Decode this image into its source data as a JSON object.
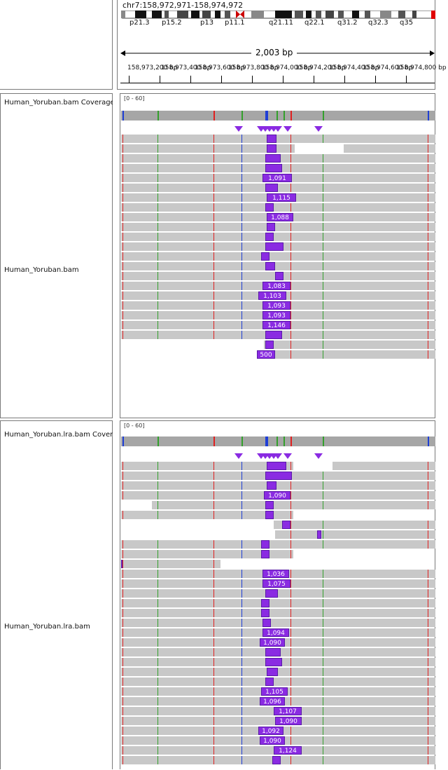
{
  "header": {
    "locus": "chr7:158,972,971-158,974,972",
    "span_label": "2,003 bp",
    "cyto_bands": [
      "p21.3",
      "p15.2",
      "p13",
      "p11.1",
      "q21.11",
      "q22.1",
      "q31.2",
      "q32.3",
      "q35"
    ],
    "ruler_labels": [
      "158,973,200 bp",
      "158,973,400 bp",
      "158,973,600 bp",
      "158,973,800 bp",
      "158,974,000 bp",
      "158,974,200 bp",
      "158,974,400 bp",
      "158,974,600 bp",
      "158,974,800 bp"
    ]
  },
  "tracks": [
    {
      "coverage_name": "Human_Yoruban.bam Coverage",
      "alignment_name": "Human_Yoruban.bam",
      "range": "[0 - 60]",
      "insertion_labels": [
        "1,091",
        "1,115",
        "1,088",
        "1,083",
        "1,103",
        "1,093",
        "1,093",
        "1,146",
        "500"
      ]
    },
    {
      "coverage_name": "Human_Yoruban.lra.bam Coverage",
      "alignment_name": "Human_Yoruban.lra.bam",
      "range": "[0 - 60]",
      "insertion_labels": [
        "1,090",
        "1,036",
        "1,075",
        "1,094",
        "1,090",
        "1,105",
        "1,096",
        "1,107",
        "1,090",
        "1,092",
        "1,090",
        "1,124"
      ]
    }
  ],
  "colors": {
    "read": "#c8c8c8",
    "coverage": "#a6a6a6",
    "insertion": "#8a2be2",
    "mismatch_a": "#33a02c",
    "mismatch_c": "#1f3fd6",
    "mismatch_t": "#e02020"
  }
}
